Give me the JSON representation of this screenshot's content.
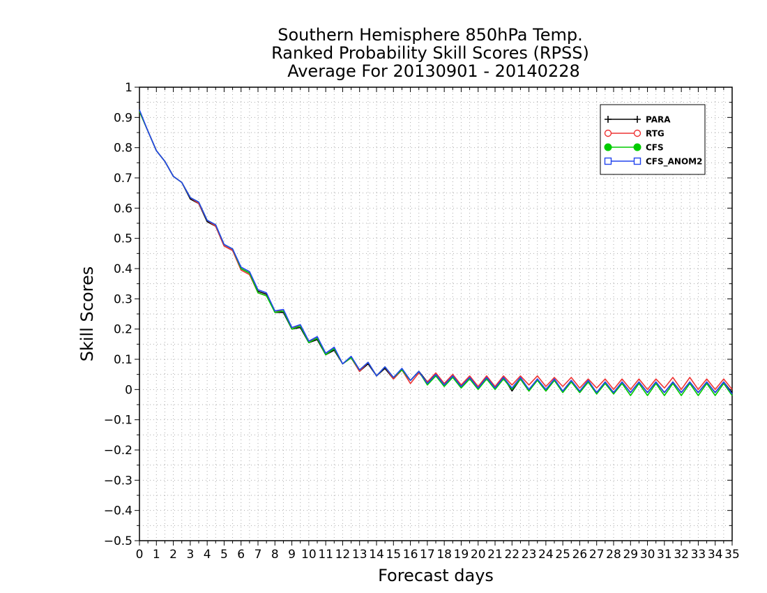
{
  "chart_data": {
    "type": "line",
    "title": [
      "Southern Hemisphere 850hPa Temp.",
      "Ranked Probability Skill Scores (RPSS)",
      "Average For 20130901 - 20140228"
    ],
    "xlabel": "Forecast days",
    "ylabel": "Skill Scores",
    "xlim": [
      0,
      35
    ],
    "ylim": [
      -0.5,
      1
    ],
    "x_ticks": [
      0,
      1,
      2,
      3,
      4,
      5,
      6,
      7,
      8,
      9,
      10,
      11,
      12,
      13,
      14,
      15,
      16,
      17,
      18,
      19,
      20,
      21,
      22,
      23,
      24,
      25,
      26,
      27,
      28,
      29,
      30,
      31,
      32,
      33,
      34,
      35
    ],
    "y_ticks": [
      -0.5,
      -0.4,
      -0.3,
      -0.2,
      -0.1,
      0,
      0.1,
      0.2,
      0.3,
      0.4,
      0.5,
      0.6,
      0.7,
      0.8,
      0.9,
      1
    ],
    "y_tick_labels": [
      "−0.5",
      "−0.4",
      "−0.3",
      "−0.2",
      "−0.1",
      "0",
      "0.1",
      "0.2",
      "0.3",
      "0.4",
      "0.5",
      "0.6",
      "0.7",
      "0.8",
      "0.9",
      "1"
    ],
    "grid": true,
    "legend_position": "top-right",
    "x": [
      0,
      0.5,
      1,
      1.5,
      2,
      2.5,
      3,
      3.5,
      4,
      4.5,
      5,
      5.5,
      6,
      6.5,
      7,
      7.5,
      8,
      8.5,
      9,
      9.5,
      10,
      10.5,
      11,
      11.5,
      12,
      12.5,
      13,
      13.5,
      14,
      14.5,
      15,
      15.5,
      16,
      16.5,
      17,
      17.5,
      18,
      18.5,
      19,
      19.5,
      20,
      20.5,
      21,
      21.5,
      22,
      22.5,
      23,
      23.5,
      24,
      24.5,
      25,
      25.5,
      26,
      26.5,
      27,
      27.5,
      28,
      28.5,
      29,
      29.5,
      30,
      30.5,
      31,
      31.5,
      32,
      32.5,
      33,
      33.5,
      34,
      34.5,
      35
    ],
    "series": [
      {
        "name": "PARA",
        "color": "#000000",
        "marker": "plus",
        "values": [
          0.92,
          0.855,
          0.79,
          0.755,
          0.705,
          0.685,
          0.63,
          0.615,
          0.555,
          0.54,
          0.475,
          0.46,
          0.4,
          0.385,
          0.325,
          0.315,
          0.255,
          0.255,
          0.2,
          0.205,
          0.155,
          0.165,
          0.115,
          0.13,
          0.085,
          0.105,
          0.06,
          0.085,
          0.045,
          0.07,
          0.035,
          0.065,
          0.03,
          0.06,
          0.025,
          0.05,
          0.02,
          0.045,
          0.01,
          0.04,
          0.005,
          0.04,
          0.005,
          0.04,
          -0.005,
          0.035,
          -0.005,
          0.035,
          -0.005,
          0.03,
          -0.005,
          0.03,
          -0.01,
          0.025,
          -0.01,
          0.025,
          -0.01,
          0.025,
          -0.01,
          0.025,
          -0.01,
          0.025,
          -0.01,
          0.025,
          -0.01,
          0.025,
          -0.01,
          0.025,
          -0.01,
          0.025,
          -0.01
        ]
      },
      {
        "name": "RTG",
        "color": "#ee3333",
        "marker": "open-circle",
        "values": [
          0.92,
          0.855,
          0.79,
          0.755,
          0.705,
          0.685,
          0.635,
          0.615,
          0.56,
          0.54,
          0.475,
          0.46,
          0.395,
          0.38,
          0.32,
          0.31,
          0.26,
          0.26,
          0.205,
          0.21,
          0.16,
          0.17,
          0.12,
          0.135,
          0.085,
          0.105,
          0.06,
          0.09,
          0.045,
          0.075,
          0.035,
          0.065,
          0.02,
          0.055,
          0.025,
          0.055,
          0.02,
          0.05,
          0.015,
          0.045,
          0.01,
          0.045,
          0.01,
          0.045,
          0.015,
          0.045,
          0.015,
          0.045,
          0.01,
          0.04,
          0.01,
          0.04,
          0.005,
          0.035,
          0.005,
          0.035,
          0.0,
          0.035,
          0.0,
          0.035,
          0.0,
          0.035,
          0.005,
          0.04,
          0.0,
          0.04,
          0.0,
          0.035,
          0.0,
          0.035,
          0.0
        ]
      },
      {
        "name": "CFS",
        "color": "#00cc00",
        "marker": "filled-circle",
        "values": [
          0.92,
          0.855,
          0.79,
          0.755,
          0.705,
          0.685,
          0.635,
          0.62,
          0.56,
          0.545,
          0.48,
          0.465,
          0.4,
          0.385,
          0.32,
          0.31,
          0.255,
          0.26,
          0.2,
          0.21,
          0.155,
          0.17,
          0.115,
          0.135,
          0.085,
          0.105,
          0.065,
          0.09,
          0.045,
          0.075,
          0.04,
          0.065,
          0.03,
          0.06,
          0.015,
          0.045,
          0.01,
          0.04,
          0.005,
          0.035,
          0.0,
          0.035,
          0.0,
          0.035,
          0.0,
          0.035,
          -0.005,
          0.03,
          -0.005,
          0.03,
          -0.01,
          0.025,
          -0.01,
          0.025,
          -0.015,
          0.02,
          -0.015,
          0.02,
          -0.02,
          0.02,
          -0.02,
          0.02,
          -0.02,
          0.02,
          -0.02,
          0.02,
          -0.02,
          0.02,
          -0.02,
          0.02,
          -0.02
        ]
      },
      {
        "name": "CFS_ANOM2",
        "color": "#2244ee",
        "marker": "open-square",
        "values": [
          0.925,
          0.855,
          0.79,
          0.755,
          0.705,
          0.685,
          0.635,
          0.62,
          0.56,
          0.545,
          0.48,
          0.465,
          0.405,
          0.39,
          0.33,
          0.32,
          0.26,
          0.265,
          0.205,
          0.215,
          0.16,
          0.175,
          0.12,
          0.14,
          0.085,
          0.11,
          0.065,
          0.09,
          0.045,
          0.075,
          0.04,
          0.07,
          0.03,
          0.06,
          0.02,
          0.05,
          0.015,
          0.045,
          0.01,
          0.04,
          0.005,
          0.04,
          0.005,
          0.04,
          0.005,
          0.04,
          0.0,
          0.035,
          0.0,
          0.035,
          -0.005,
          0.03,
          -0.005,
          0.03,
          -0.01,
          0.025,
          -0.01,
          0.025,
          -0.01,
          0.025,
          -0.01,
          0.025,
          -0.01,
          0.025,
          -0.01,
          0.025,
          -0.01,
          0.025,
          -0.01,
          0.025,
          -0.015
        ]
      }
    ]
  }
}
